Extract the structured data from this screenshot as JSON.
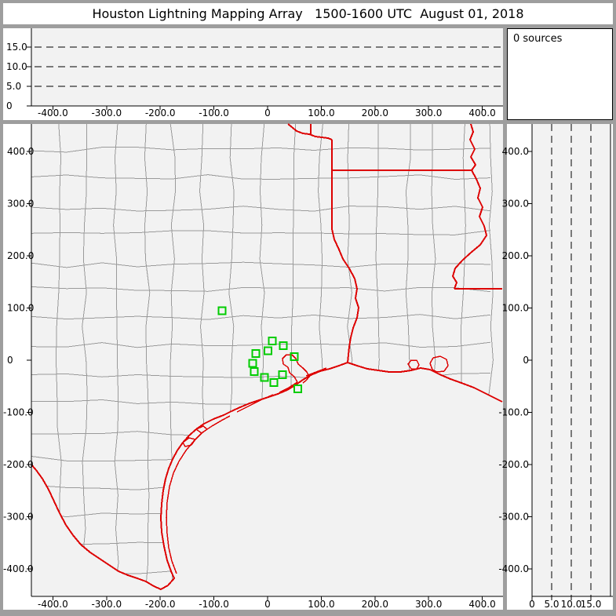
{
  "title": "Houston Lightning Mapping Array   1500-1600 UTC  August 01, 2018",
  "sources_panel": {
    "text": "0 sources"
  },
  "colors": {
    "frame_gray": "#9e9e9e",
    "panel_bg": "#ffffff",
    "plot_bg": "#f2f2f2",
    "axis_black": "#000000",
    "county_gray": "#9a9a9a",
    "state_red": "#dd0000",
    "station_green": "#00cc00",
    "grid_dash_black": "#000000"
  },
  "chart_data": [
    {
      "id": "alt_vs_ew",
      "type": "scatter",
      "title": "",
      "x_range": [
        -450,
        450
      ],
      "y_range": [
        0,
        20
      ],
      "x_tick_values": [
        -400,
        -300,
        -200,
        -100,
        0,
        100,
        200,
        300,
        400
      ],
      "x_tick_labels": [
        "-400.0",
        "-300.0",
        "-200.0",
        "-100.0",
        "0",
        "100.0",
        "200.0",
        "300.0",
        "400.0"
      ],
      "y_tick_values": [
        0,
        5,
        10,
        15
      ],
      "y_tick_labels": [
        "0",
        "5.0",
        "10.0",
        "15.0"
      ],
      "gridlines_y": [
        5,
        10,
        15
      ],
      "grid_style": "dashed",
      "points": []
    },
    {
      "id": "sources_count",
      "type": "text",
      "text": "0 sources"
    },
    {
      "id": "plan_view_map",
      "type": "scatter",
      "title": "",
      "x_range": [
        -440,
        437
      ],
      "y_range": [
        -453,
        452
      ],
      "x_tick_values": [
        -400,
        -300,
        -200,
        -100,
        0,
        100,
        200,
        300,
        400
      ],
      "x_tick_labels": [
        "-400.0",
        "-300.0",
        "-200.0",
        "-100.0",
        "0",
        "100.0",
        "200.0",
        "300.0",
        "400.0"
      ],
      "y_tick_values": [
        400,
        300,
        200,
        100,
        0,
        -100,
        -200,
        -300,
        -400
      ],
      "y_tick_labels": [
        "400.0",
        "300.0",
        "200.0",
        "100.0",
        "0",
        "-100.0",
        "-200.0",
        "-300.0",
        "-400.0"
      ],
      "map_features": [
        "county-boundaries",
        "state-borders",
        "gulf-coastline",
        "rio-grande",
        "barrier-islands",
        "galveston-bay",
        "coastal-lakes"
      ],
      "stations_km": [
        [
          -85,
          95
        ],
        [
          9,
          37
        ],
        [
          29,
          28
        ],
        [
          1,
          18
        ],
        [
          -22,
          13
        ],
        [
          -28,
          -6
        ],
        [
          -25,
          -22
        ],
        [
          -6,
          -33
        ],
        [
          28,
          -28
        ],
        [
          12,
          -43
        ],
        [
          50,
          7
        ],
        [
          56,
          -55
        ]
      ],
      "points": []
    },
    {
      "id": "alt_vs_ns",
      "type": "scatter",
      "title": "",
      "x_range": [
        0,
        20
      ],
      "y_range": [
        -453,
        452
      ],
      "x_tick_values": [
        0,
        5,
        10,
        15
      ],
      "x_tick_labels": [
        "0",
        "5.0",
        "10.0",
        "15.0"
      ],
      "y_tick_values": [
        400,
        300,
        200,
        100,
        0,
        -100,
        -200,
        -300,
        -400
      ],
      "y_tick_labels": [
        "400.0",
        "300.0",
        "200.0",
        "100.0",
        "0",
        "-100.0",
        "-200.0",
        "-300.0",
        "-400.0"
      ],
      "gridlines_x": [
        5,
        10,
        15
      ],
      "grid_style": "dashed",
      "points": []
    }
  ]
}
